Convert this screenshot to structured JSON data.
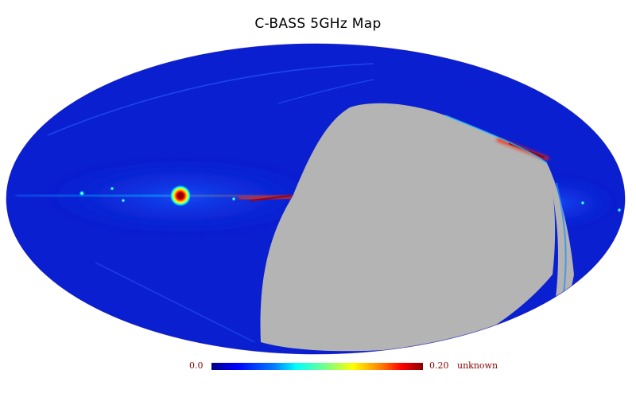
{
  "title": "C-BASS 5GHz Map",
  "colorbar": {
    "min_label": "0.0",
    "max_label": "0.20",
    "unit_label": "unknown",
    "min_value": 0.0,
    "max_value": 0.2,
    "colormap": "jet",
    "stops": [
      "#00008b",
      "#0000ff",
      "#0080ff",
      "#00ffff",
      "#80ff80",
      "#ffff00",
      "#ff8000",
      "#ff0000",
      "#8b0000"
    ]
  },
  "map": {
    "projection": "mollweide",
    "background_color": "#0a1fd0",
    "mask_color": "#b4b4b4",
    "frame_color": "#ffffff"
  }
}
